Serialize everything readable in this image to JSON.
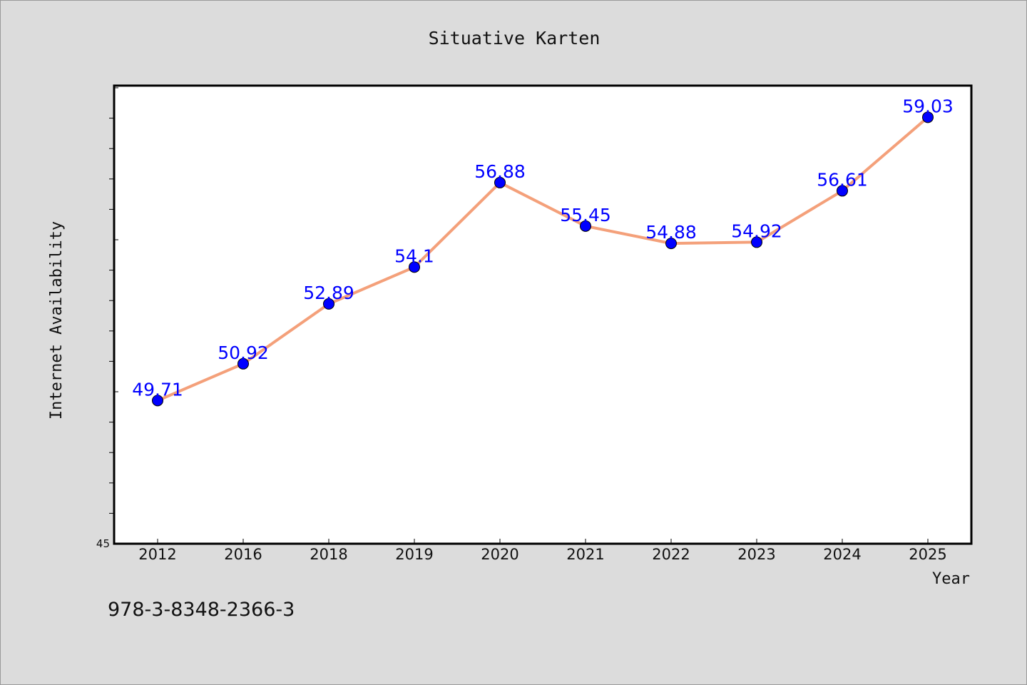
{
  "chart_data": {
    "type": "line",
    "title": "Situative Karten",
    "xlabel": "Year",
    "ylabel": "Internet Availability",
    "categories": [
      "2012",
      "2016",
      "2018",
      "2019",
      "2020",
      "2021",
      "2022",
      "2023",
      "2024",
      "2025"
    ],
    "series": [
      {
        "values": [
          49.71,
          50.92,
          52.89,
          54.1,
          56.88,
          55.45,
          54.88,
          54.92,
          56.61,
          59.03
        ],
        "labels": [
          "49.71",
          "50.92",
          "52.89",
          "54.1",
          "56.88",
          "55.45",
          "54.88",
          "54.92",
          "56.61",
          "59.03"
        ],
        "line_color": "#f4a07a",
        "marker_color": "#0000ff"
      }
    ],
    "ylim": [
      45,
      60
    ],
    "y_tick_labels": [
      "45"
    ],
    "y_minor_step": 1,
    "grid": false,
    "legend": "none",
    "label_color": "#0000ff"
  },
  "footer": {
    "code": "978-3-8348-2366-3"
  }
}
